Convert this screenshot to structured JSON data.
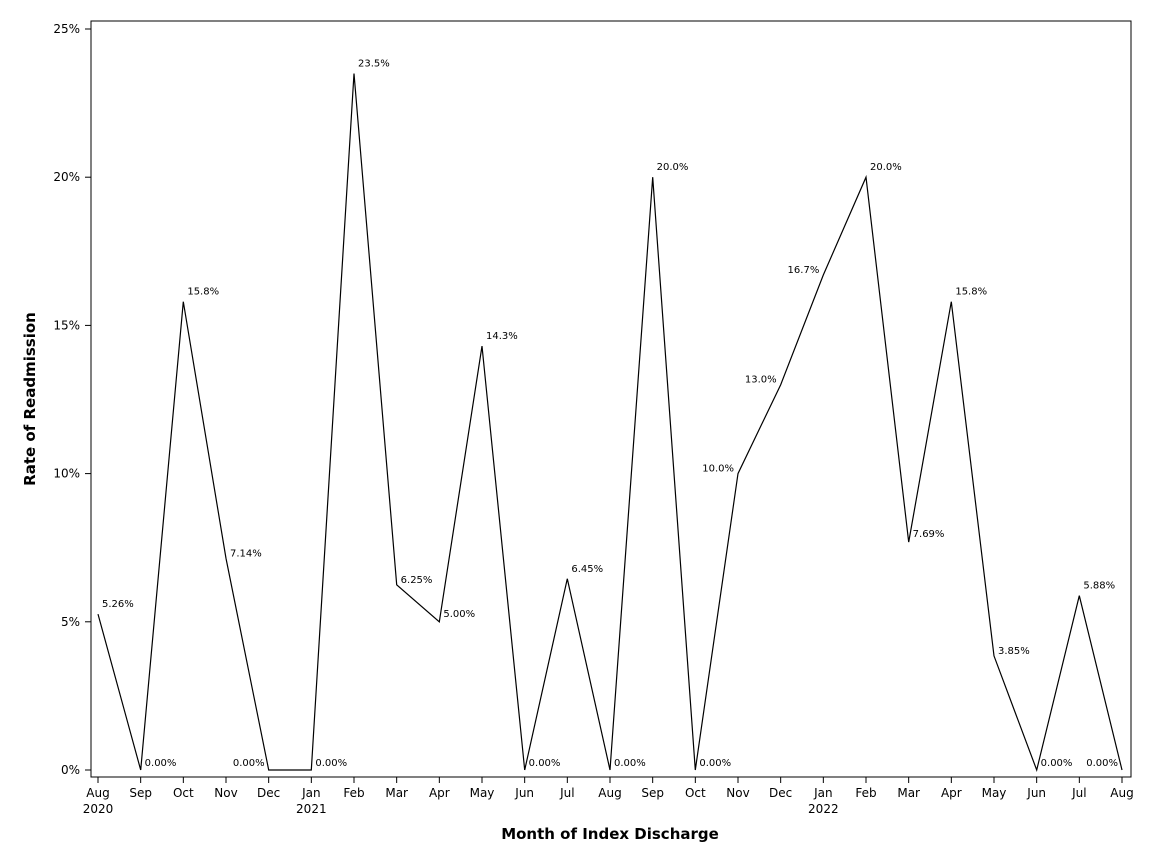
{
  "chart_data": {
    "type": "line",
    "title": "",
    "xlabel": "Month of Index Discharge",
    "ylabel": "Rate of Readmission",
    "ylim": [
      0,
      25
    ],
    "y_ticks": [
      "0%",
      "5%",
      "10%",
      "15%",
      "20%",
      "25%"
    ],
    "grid": false,
    "legend": "none",
    "x": [
      "Aug 2020",
      "Sep",
      "Oct",
      "Nov",
      "Dec",
      "Jan 2021",
      "Feb",
      "Mar",
      "Apr",
      "May",
      "Jun",
      "Jul",
      "Aug",
      "Sep",
      "Oct",
      "Nov",
      "Dec",
      "Jan 2022",
      "Feb",
      "Mar",
      "Apr",
      "May",
      "Jun",
      "Jul",
      "Aug"
    ],
    "x_tick_labels": [
      {
        "month": "Aug",
        "year": "2020"
      },
      {
        "month": "Sep",
        "year": ""
      },
      {
        "month": "Oct",
        "year": ""
      },
      {
        "month": "Nov",
        "year": ""
      },
      {
        "month": "Dec",
        "year": ""
      },
      {
        "month": "Jan",
        "year": "2021"
      },
      {
        "month": "Feb",
        "year": ""
      },
      {
        "month": "Mar",
        "year": ""
      },
      {
        "month": "Apr",
        "year": ""
      },
      {
        "month": "May",
        "year": ""
      },
      {
        "month": "Jun",
        "year": ""
      },
      {
        "month": "Jul",
        "year": ""
      },
      {
        "month": "Aug",
        "year": ""
      },
      {
        "month": "Sep",
        "year": ""
      },
      {
        "month": "Oct",
        "year": ""
      },
      {
        "month": "Nov",
        "year": ""
      },
      {
        "month": "Dec",
        "year": ""
      },
      {
        "month": "Jan",
        "year": "2022"
      },
      {
        "month": "Feb",
        "year": ""
      },
      {
        "month": "Mar",
        "year": ""
      },
      {
        "month": "Apr",
        "year": ""
      },
      {
        "month": "May",
        "year": ""
      },
      {
        "month": "Jun",
        "year": ""
      },
      {
        "month": "Jul",
        "year": ""
      },
      {
        "month": "Aug",
        "year": ""
      }
    ],
    "series": [
      {
        "values": [
          5.26,
          0,
          15.8,
          7.14,
          0,
          0,
          23.5,
          6.25,
          5.0,
          14.3,
          0,
          6.45,
          0,
          20.0,
          0,
          10.0,
          13.0,
          16.7,
          20.0,
          7.69,
          15.8,
          3.85,
          0,
          5.88,
          0
        ],
        "data_labels": [
          "5.26%",
          "0.00%",
          "15.8%",
          "7.14%",
          "0.00%",
          "0.00%",
          "23.5%",
          "6.25%",
          "5.00%",
          "14.3%",
          "0.00%",
          "6.45%",
          "0.00%",
          "20.0%",
          "0.00%",
          "10.0%",
          "13.0%",
          "16.7%",
          "20.0%",
          "7.69%",
          "15.8%",
          "3.85%",
          "0.00%",
          "5.88%",
          "0.00%"
        ]
      }
    ],
    "line_color": "#000000"
  }
}
